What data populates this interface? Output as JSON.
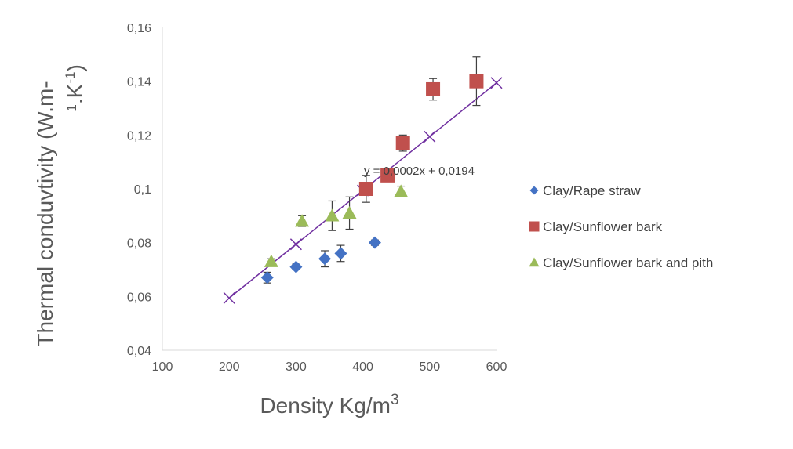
{
  "chart_data": {
    "type": "scatter",
    "title": "",
    "xlabel": "Density Kg/m",
    "xlabel_sup": "3",
    "ylabel_main": "Thermal conduvtivity (W.m-",
    "ylabel_second": "1",
    "ylabel_mid": ".K",
    "ylabel_sup": "-1",
    "ylabel_close": ")",
    "xlim": [
      100,
      600
    ],
    "ylim": [
      0.04,
      0.16
    ],
    "x_ticks": [
      100,
      200,
      300,
      400,
      500,
      600
    ],
    "x_tick_labels": [
      "100",
      "200",
      "300",
      "400",
      "500",
      "600"
    ],
    "y_ticks": [
      0.04,
      0.06,
      0.08,
      0.1,
      0.12,
      0.14,
      0.16
    ],
    "y_tick_labels": [
      "0,04",
      "0,06",
      "0,08",
      "0,1",
      "0,12",
      "0,14",
      "0,16"
    ],
    "grid": false,
    "legend_position": "right",
    "series": [
      {
        "name": "Clay/Rape straw",
        "marker": "diamond",
        "color": "#4472c4",
        "points": [
          {
            "x": 257,
            "y": 0.067,
            "err": 0.002
          },
          {
            "x": 300,
            "y": 0.071,
            "err": 0.001
          },
          {
            "x": 343,
            "y": 0.074,
            "err": 0.003
          },
          {
            "x": 367,
            "y": 0.076,
            "err": 0.003
          },
          {
            "x": 418,
            "y": 0.08,
            "err": 0.001
          }
        ]
      },
      {
        "name": "Clay/Sunflower bark",
        "marker": "square",
        "color": "#c0504d",
        "points": [
          {
            "x": 405,
            "y": 0.1,
            "err": 0.005
          },
          {
            "x": 437,
            "y": 0.105,
            "err": 0.001
          },
          {
            "x": 460,
            "y": 0.117,
            "err": 0.003
          },
          {
            "x": 505,
            "y": 0.137,
            "err": 0.004
          },
          {
            "x": 570,
            "y": 0.14,
            "err": 0.009
          }
        ]
      },
      {
        "name": "Clay/Sunflower bark and pith",
        "marker": "triangle",
        "color": "#9bbb59",
        "points": [
          {
            "x": 263,
            "y": 0.073,
            "err": 0.001
          },
          {
            "x": 309,
            "y": 0.088,
            "err": 0.002
          },
          {
            "x": 354,
            "y": 0.09,
            "err": 0.0055
          },
          {
            "x": 380,
            "y": 0.091,
            "err": 0.006
          },
          {
            "x": 457,
            "y": 0.099,
            "err": 0.002
          }
        ]
      }
    ],
    "trendline": {
      "color": "#7030a0",
      "slope": 0.0002,
      "intercept": 0.0194,
      "x_range": [
        200,
        600
      ],
      "marker_x": [
        200,
        300,
        400,
        500,
        600
      ],
      "equation": "y = 0,0002x + 0,0194"
    }
  }
}
